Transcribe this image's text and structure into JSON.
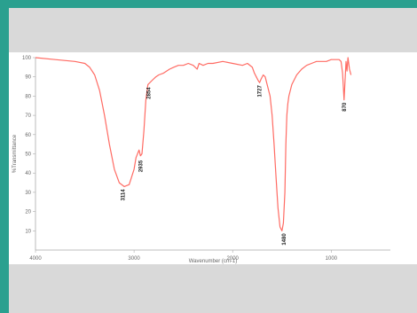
{
  "colors": {
    "frame": "#2aa08f",
    "band": "#d9d9d9",
    "plot_background": "#ffffff",
    "line": "#ff6b63",
    "axis": "#aaaaaa"
  },
  "chart_data": {
    "type": "line",
    "title": "",
    "xlabel": "Wavenumber (cm-1)",
    "ylabel": "%Transmittance",
    "xlim": [
      4000,
      400
    ],
    "ylim": [
      0,
      100
    ],
    "xticks": [
      4000,
      3000,
      2000,
      1000
    ],
    "xtick_labels": [
      "4000",
      "3000",
      "2000",
      "1000"
    ],
    "yticks": [
      10,
      20,
      30,
      40,
      50,
      60,
      70,
      80,
      90,
      100
    ],
    "ytick_labels": [
      "10",
      "20",
      "30",
      "40",
      "50",
      "60",
      "70",
      "80",
      "90",
      "100"
    ],
    "grid": false,
    "series": [
      {
        "color": "#ff6b63",
        "x": [
          4000,
          3800,
          3600,
          3500,
          3450,
          3400,
          3350,
          3300,
          3250,
          3200,
          3150,
          3100,
          3050,
          3000,
          2980,
          2950,
          2935,
          2920,
          2900,
          2880,
          2860,
          2820,
          2780,
          2750,
          2700,
          2640,
          2600,
          2550,
          2500,
          2450,
          2400,
          2360,
          2340,
          2300,
          2250,
          2200,
          2100,
          2000,
          1900,
          1850,
          1800,
          1780,
          1760,
          1740,
          1727,
          1710,
          1690,
          1670,
          1650,
          1620,
          1600,
          1580,
          1560,
          1540,
          1520,
          1500,
          1485,
          1470,
          1460,
          1450,
          1440,
          1430,
          1400,
          1350,
          1300,
          1250,
          1200,
          1150,
          1100,
          1050,
          1000,
          950,
          920,
          900,
          885,
          870,
          860,
          850,
          840,
          830,
          815,
          800
        ],
        "y": [
          100,
          99,
          98,
          97,
          95,
          91,
          83,
          70,
          55,
          42,
          35,
          33,
          34,
          42,
          48,
          52,
          49,
          50,
          62,
          78,
          86,
          88,
          90,
          91,
          92,
          94,
          95,
          96,
          96,
          97,
          96,
          94,
          97,
          96,
          97,
          97,
          98,
          97,
          96,
          97,
          95,
          92,
          90,
          88,
          87,
          89,
          91,
          90,
          86,
          80,
          70,
          55,
          38,
          22,
          12,
          10,
          14,
          30,
          55,
          70,
          76,
          80,
          86,
          91,
          94,
          96,
          97,
          98,
          98,
          98,
          99,
          99,
          99,
          98,
          92,
          78,
          88,
          98,
          93,
          100,
          94,
          91
        ]
      }
    ],
    "annotations": [
      {
        "x": 3114,
        "y": 33,
        "label": "3114"
      },
      {
        "x": 2935,
        "y": 48,
        "label": "2935"
      },
      {
        "x": 2854,
        "y": 86,
        "label": "2854"
      },
      {
        "x": 1727,
        "y": 87,
        "label": "1727"
      },
      {
        "x": 1480,
        "y": 10,
        "label": "1480"
      },
      {
        "x": 870,
        "y": 78,
        "label": "870"
      }
    ]
  }
}
